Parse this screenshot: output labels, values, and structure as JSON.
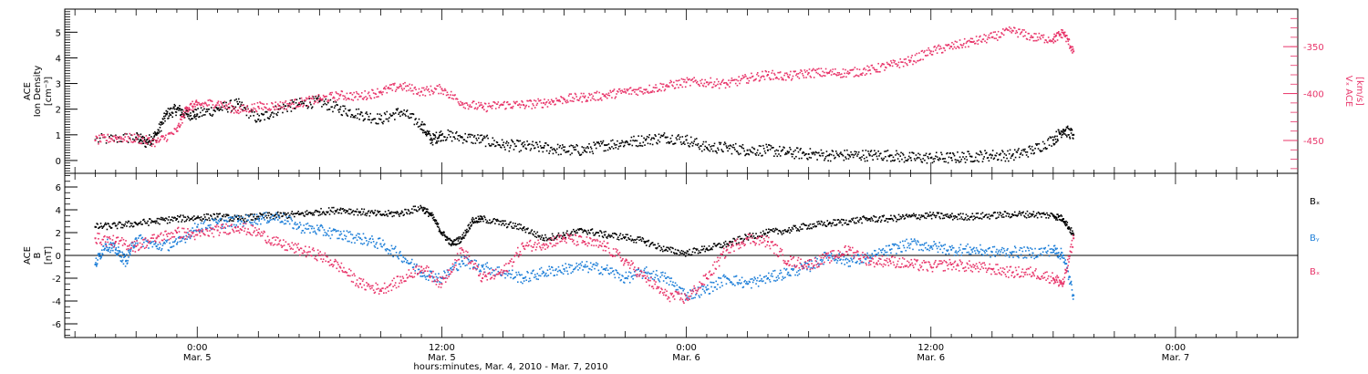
{
  "chart_data": [
    {
      "type": "scatter",
      "panel": "top",
      "left_axis": {
        "label_lines": [
          "ACE",
          "Ion Density"
        ],
        "unit": "[cm⁻³]",
        "range": [
          -0.5,
          5.9
        ],
        "ticks": [
          "0",
          "1",
          "2",
          "3",
          "4",
          "5"
        ]
      },
      "right_axis": {
        "label": "Vₓ ACE",
        "unit": "[km/s]",
        "range": [
          -485,
          -310
        ],
        "ticks": [
          "-350",
          "-400",
          "-450"
        ],
        "color": "#e8356a"
      },
      "series": [
        {
          "name": "",
          "axis": "left",
          "color": "#000000",
          "points": [
            [
              -5.0,
              0.8
            ],
            [
              -3.0,
              0.9
            ],
            [
              -2.5,
              0.7
            ],
            [
              -2.0,
              1.0
            ],
            [
              -1.5,
              1.8
            ],
            [
              -1.0,
              2.0
            ],
            [
              -0.5,
              1.8
            ],
            [
              0.0,
              1.8
            ],
            [
              1.0,
              2.0
            ],
            [
              2.0,
              2.2
            ],
            [
              3.0,
              1.6
            ],
            [
              4.0,
              2.0
            ],
            [
              5.0,
              2.2
            ],
            [
              6.0,
              2.3
            ],
            [
              7.0,
              2.0
            ],
            [
              8.0,
              1.8
            ],
            [
              9.0,
              1.6
            ],
            [
              10.0,
              1.9
            ],
            [
              11.0,
              1.4
            ],
            [
              11.5,
              0.8
            ],
            [
              12.0,
              1.0
            ],
            [
              13.0,
              0.9
            ],
            [
              14.0,
              0.8
            ],
            [
              15.0,
              0.6
            ],
            [
              16.0,
              0.55
            ],
            [
              17.0,
              0.5
            ],
            [
              18.0,
              0.4
            ],
            [
              19.0,
              0.4
            ],
            [
              20.0,
              0.6
            ],
            [
              21.0,
              0.7
            ],
            [
              22.0,
              0.8
            ],
            [
              23.0,
              0.9
            ],
            [
              24.0,
              0.8
            ],
            [
              25.0,
              0.5
            ],
            [
              26.0,
              0.5
            ],
            [
              27.0,
              0.4
            ],
            [
              28.0,
              0.4
            ],
            [
              29.0,
              0.3
            ],
            [
              30.0,
              0.25
            ],
            [
              31.0,
              0.2
            ],
            [
              32.0,
              0.2
            ],
            [
              33.0,
              0.2
            ],
            [
              34.0,
              0.2
            ],
            [
              35.0,
              0.1
            ],
            [
              36.0,
              0.1
            ],
            [
              37.0,
              0.1
            ],
            [
              38.0,
              0.15
            ],
            [
              39.0,
              0.2
            ],
            [
              40.0,
              0.2
            ],
            [
              41.0,
              0.4
            ],
            [
              42.0,
              0.8
            ],
            [
              42.5,
              1.2
            ],
            [
              43.0,
              1.0
            ]
          ]
        },
        {
          "name": "",
          "axis": "right",
          "color": "#e8356a",
          "points": [
            [
              -5.0,
              -450
            ],
            [
              -4.0,
              -447
            ],
            [
              -3.0,
              -448
            ],
            [
              -2.0,
              -452
            ],
            [
              -1.0,
              -440
            ],
            [
              -0.5,
              -415
            ],
            [
              0.0,
              -412
            ],
            [
              1.0,
              -410
            ],
            [
              2.0,
              -418
            ],
            [
              3.0,
              -414
            ],
            [
              4.0,
              -413
            ],
            [
              5.0,
              -410
            ],
            [
              6.0,
              -406
            ],
            [
              7.0,
              -402
            ],
            [
              8.0,
              -403
            ],
            [
              9.0,
              -398
            ],
            [
              10.0,
              -392
            ],
            [
              11.0,
              -398
            ],
            [
              12.0,
              -395
            ],
            [
              13.0,
              -410
            ],
            [
              14.0,
              -415
            ],
            [
              15.0,
              -412
            ],
            [
              16.0,
              -412
            ],
            [
              17.0,
              -410
            ],
            [
              18.0,
              -406
            ],
            [
              19.0,
              -404
            ],
            [
              20.0,
              -402
            ],
            [
              21.0,
              -398
            ],
            [
              22.0,
              -396
            ],
            [
              23.0,
              -392
            ],
            [
              24.0,
              -388
            ],
            [
              25.0,
              -388
            ],
            [
              26.0,
              -390
            ],
            [
              27.0,
              -384
            ],
            [
              28.0,
              -380
            ],
            [
              29.0,
              -382
            ],
            [
              30.0,
              -378
            ],
            [
              31.0,
              -378
            ],
            [
              32.0,
              -378
            ],
            [
              33.0,
              -375
            ],
            [
              34.0,
              -370
            ],
            [
              35.0,
              -365
            ],
            [
              36.0,
              -355
            ],
            [
              37.0,
              -350
            ],
            [
              38.0,
              -345
            ],
            [
              39.0,
              -340
            ],
            [
              40.0,
              -333
            ],
            [
              41.0,
              -340
            ],
            [
              42.0,
              -342
            ],
            [
              42.5,
              -335
            ],
            [
              43.0,
              -355
            ]
          ]
        }
      ]
    },
    {
      "type": "scatter",
      "panel": "bottom",
      "left_axis": {
        "label_lines": [
          "ACE",
          "B"
        ],
        "unit": "[nT]",
        "range": [
          -7.2,
          7.2
        ],
        "ticks": [
          "-6",
          "-4",
          "-2",
          "0",
          "2",
          "4",
          "6"
        ]
      },
      "legend": [
        {
          "label": "Bₓ",
          "color": "#000000"
        },
        {
          "label": "Bᵧ",
          "color": "#1e7fd8"
        },
        {
          "label": "Bₓ",
          "color": "#e8356a"
        }
      ],
      "series": [
        {
          "name": "Bₓ",
          "color": "#000000",
          "points": [
            [
              -5.0,
              2.5
            ],
            [
              -4.0,
              2.6
            ],
            [
              -3.0,
              2.8
            ],
            [
              -2.0,
              3.0
            ],
            [
              -1.0,
              3.2
            ],
            [
              0.0,
              3.3
            ],
            [
              1.0,
              3.4
            ],
            [
              2.0,
              3.2
            ],
            [
              3.0,
              3.4
            ],
            [
              4.0,
              3.5
            ],
            [
              5.0,
              3.6
            ],
            [
              6.0,
              3.8
            ],
            [
              7.0,
              4.0
            ],
            [
              8.0,
              3.8
            ],
            [
              9.0,
              3.6
            ],
            [
              10.0,
              3.7
            ],
            [
              11.0,
              4.2
            ],
            [
              11.5,
              3.5
            ],
            [
              12.0,
              2.0
            ],
            [
              12.5,
              1.0
            ],
            [
              13.0,
              1.5
            ],
            [
              13.5,
              3.0
            ],
            [
              14.0,
              3.2
            ],
            [
              15.0,
              2.8
            ],
            [
              16.0,
              2.4
            ],
            [
              17.0,
              1.5
            ],
            [
              18.0,
              1.8
            ],
            [
              19.0,
              2.2
            ],
            [
              20.0,
              1.8
            ],
            [
              21.0,
              1.6
            ],
            [
              22.0,
              1.2
            ],
            [
              23.0,
              0.5
            ],
            [
              24.0,
              0.2
            ],
            [
              25.0,
              0.6
            ],
            [
              26.0,
              1.0
            ],
            [
              27.0,
              1.6
            ],
            [
              28.0,
              2.0
            ],
            [
              29.0,
              2.2
            ],
            [
              30.0,
              2.6
            ],
            [
              31.0,
              2.8
            ],
            [
              32.0,
              3.0
            ],
            [
              33.0,
              3.2
            ],
            [
              34.0,
              3.2
            ],
            [
              35.0,
              3.4
            ],
            [
              36.0,
              3.5
            ],
            [
              37.0,
              3.4
            ],
            [
              38.0,
              3.4
            ],
            [
              39.0,
              3.5
            ],
            [
              40.0,
              3.6
            ],
            [
              41.0,
              3.6
            ],
            [
              42.0,
              3.5
            ],
            [
              42.5,
              3.2
            ],
            [
              43.0,
              1.8
            ]
          ]
        },
        {
          "name": "Bᵧ",
          "color": "#1e7fd8",
          "points": [
            [
              -5.0,
              -0.8
            ],
            [
              -4.5,
              1.0
            ],
            [
              -4.0,
              0.5
            ],
            [
              -3.5,
              -0.5
            ],
            [
              -3.0,
              1.5
            ],
            [
              -2.0,
              0.8
            ],
            [
              -1.0,
              1.0
            ],
            [
              0.0,
              2.5
            ],
            [
              1.0,
              2.8
            ],
            [
              2.0,
              3.0
            ],
            [
              3.0,
              3.2
            ],
            [
              4.0,
              3.4
            ],
            [
              5.0,
              2.5
            ],
            [
              6.0,
              2.2
            ],
            [
              7.0,
              1.8
            ],
            [
              8.0,
              1.5
            ],
            [
              9.0,
              1.0
            ],
            [
              10.0,
              0.0
            ],
            [
              11.0,
              -1.5
            ],
            [
              12.0,
              -2.0
            ],
            [
              13.0,
              -0.5
            ],
            [
              14.0,
              -1.0
            ],
            [
              15.0,
              -1.5
            ],
            [
              16.0,
              -2.0
            ],
            [
              17.0,
              -1.5
            ],
            [
              18.0,
              -1.2
            ],
            [
              19.0,
              -1.0
            ],
            [
              20.0,
              -1.2
            ],
            [
              21.0,
              -2.0
            ],
            [
              22.0,
              -1.5
            ],
            [
              23.0,
              -2.0
            ],
            [
              24.0,
              -3.5
            ],
            [
              25.0,
              -3.0
            ],
            [
              26.0,
              -2.0
            ],
            [
              27.0,
              -2.5
            ],
            [
              28.0,
              -2.0
            ],
            [
              29.0,
              -1.5
            ],
            [
              30.0,
              -1.0
            ],
            [
              31.0,
              0.0
            ],
            [
              32.0,
              -0.5
            ],
            [
              33.0,
              -0.2
            ],
            [
              34.0,
              0.5
            ],
            [
              35.0,
              1.0
            ],
            [
              36.0,
              0.8
            ],
            [
              37.0,
              0.5
            ],
            [
              38.0,
              0.5
            ],
            [
              39.0,
              0.3
            ],
            [
              40.0,
              0.3
            ],
            [
              41.0,
              0.2
            ],
            [
              42.0,
              0.5
            ],
            [
              42.5,
              0.0
            ],
            [
              43.0,
              -3.5
            ]
          ]
        },
        {
          "name": "Bₓ",
          "color": "#e8356a",
          "points": [
            [
              -5.0,
              1.5
            ],
            [
              -4.0,
              1.2
            ],
            [
              -3.0,
              0.8
            ],
            [
              -2.0,
              1.5
            ],
            [
              -1.0,
              2.0
            ],
            [
              0.0,
              1.8
            ],
            [
              1.0,
              2.2
            ],
            [
              2.0,
              2.5
            ],
            [
              3.0,
              2.0
            ],
            [
              4.0,
              1.0
            ],
            [
              5.0,
              0.5
            ],
            [
              6.0,
              0.0
            ],
            [
              7.0,
              -1.0
            ],
            [
              8.0,
              -2.5
            ],
            [
              9.0,
              -3.0
            ],
            [
              10.0,
              -2.2
            ],
            [
              11.0,
              -1.0
            ],
            [
              12.0,
              -2.5
            ],
            [
              13.0,
              0.5
            ],
            [
              14.0,
              -2.0
            ],
            [
              15.0,
              -1.5
            ],
            [
              16.0,
              0.8
            ],
            [
              17.0,
              1.0
            ],
            [
              18.0,
              1.5
            ],
            [
              19.0,
              1.2
            ],
            [
              20.0,
              0.8
            ],
            [
              21.0,
              -0.5
            ],
            [
              22.0,
              -2.0
            ],
            [
              23.0,
              -3.5
            ],
            [
              24.0,
              -3.8
            ],
            [
              25.0,
              -2.0
            ],
            [
              26.0,
              0.5
            ],
            [
              27.0,
              1.5
            ],
            [
              28.0,
              1.2
            ],
            [
              29.0,
              -0.5
            ],
            [
              30.0,
              -0.8
            ],
            [
              31.0,
              -0.2
            ],
            [
              32.0,
              0.5
            ],
            [
              33.0,
              -0.5
            ],
            [
              34.0,
              -0.5
            ],
            [
              35.0,
              -0.8
            ],
            [
              36.0,
              -1.0
            ],
            [
              37.0,
              -0.8
            ],
            [
              38.0,
              -1.0
            ],
            [
              39.0,
              -1.2
            ],
            [
              40.0,
              -1.5
            ],
            [
              41.0,
              -1.5
            ],
            [
              42.0,
              -2.0
            ],
            [
              42.5,
              -2.5
            ],
            [
              43.0,
              1.5
            ]
          ]
        }
      ]
    }
  ],
  "x_axis": {
    "range_hours": [
      -6.5,
      54.0
    ],
    "ticks": [
      {
        "hours": 0,
        "time": "0:00",
        "date": "Mar. 5"
      },
      {
        "hours": 12,
        "time": "12:00",
        "date": "Mar. 5"
      },
      {
        "hours": 24,
        "time": "0:00",
        "date": "Mar. 6"
      },
      {
        "hours": 36,
        "time": "12:00",
        "date": "Mar. 6"
      },
      {
        "hours": 48,
        "time": "0:00",
        "date": "Mar. 7"
      }
    ],
    "label": "hours:minutes, Mar.  4, 2010 - Mar.  7, 2010"
  }
}
